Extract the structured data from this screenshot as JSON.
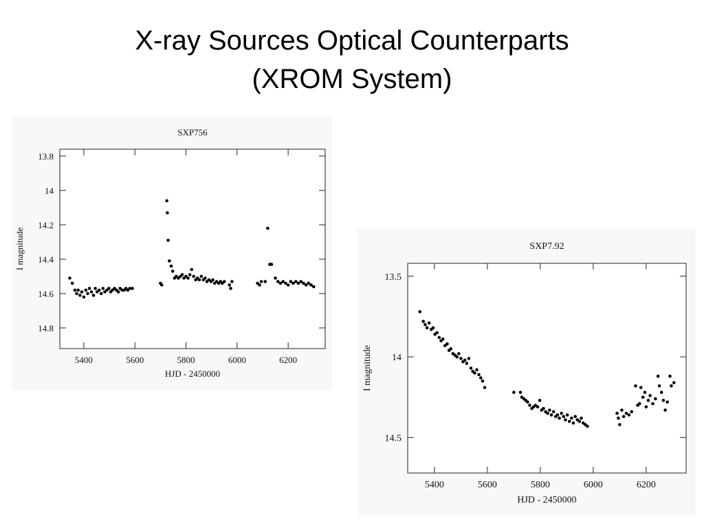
{
  "title": [
    "X-ray Sources Optical Counterparts",
    "(XROM System)"
  ],
  "chart_data": [
    {
      "type": "scatter",
      "title": "SXP756",
      "x_label": "HJD - 2450000",
      "y_label": "I magnitude",
      "color": "#000000",
      "y_inverted": true,
      "xlim": [
        5306,
        6345
      ],
      "ylim": [
        13.76,
        14.92
      ],
      "xticks": [
        5400,
        5600,
        5800,
        6000,
        6200
      ],
      "yticks": [
        13.8,
        14,
        14.2,
        14.4,
        14.6,
        14.8
      ],
      "x": [
        5345,
        5355,
        5365,
        5372,
        5378,
        5385,
        5392,
        5400,
        5408,
        5415,
        5422,
        5430,
        5438,
        5445,
        5452,
        5460,
        5468,
        5475,
        5482,
        5490,
        5498,
        5505,
        5512,
        5520,
        5528,
        5535,
        5542,
        5550,
        5558,
        5565,
        5572,
        5580,
        5590,
        5700,
        5705,
        5725,
        5727,
        5730,
        5735,
        5742,
        5748,
        5755,
        5762,
        5770,
        5778,
        5785,
        5792,
        5800,
        5808,
        5815,
        5822,
        5830,
        5838,
        5845,
        5852,
        5860,
        5868,
        5875,
        5882,
        5890,
        5898,
        5905,
        5912,
        5920,
        5928,
        5935,
        5942,
        5950,
        5970,
        5975,
        5980,
        6080,
        6088,
        6095,
        6110,
        6120,
        6128,
        6135,
        6150,
        6160,
        6170,
        6180,
        6190,
        6200,
        6210,
        6220,
        6230,
        6240,
        6250,
        6260,
        6270,
        6280,
        6290,
        6300
      ],
      "values": [
        14.51,
        14.54,
        14.58,
        14.6,
        14.58,
        14.61,
        14.59,
        14.62,
        14.58,
        14.6,
        14.57,
        14.59,
        14.61,
        14.57,
        14.59,
        14.58,
        14.6,
        14.57,
        14.59,
        14.58,
        14.57,
        14.59,
        14.58,
        14.57,
        14.58,
        14.59,
        14.57,
        14.58,
        14.58,
        14.57,
        14.58,
        14.57,
        14.57,
        14.54,
        14.55,
        14.06,
        14.13,
        14.29,
        14.41,
        14.44,
        14.47,
        14.51,
        14.5,
        14.51,
        14.5,
        14.49,
        14.51,
        14.5,
        14.51,
        14.49,
        14.46,
        14.5,
        14.52,
        14.51,
        14.52,
        14.5,
        14.52,
        14.51,
        14.53,
        14.52,
        14.53,
        14.52,
        14.54,
        14.53,
        14.54,
        14.53,
        14.54,
        14.53,
        14.55,
        14.57,
        14.53,
        14.54,
        14.55,
        14.53,
        14.53,
        14.22,
        14.43,
        14.43,
        14.51,
        14.53,
        14.54,
        14.53,
        14.54,
        14.55,
        14.53,
        14.54,
        14.53,
        14.54,
        14.53,
        14.54,
        14.55,
        14.54,
        14.55,
        14.56
      ]
    },
    {
      "type": "scatter",
      "title": "SXP7.92",
      "x_label": "HJD - 2450000",
      "y_label": "I magnitude",
      "color": "#000000",
      "y_inverted": true,
      "xlim": [
        5299,
        6351
      ],
      "ylim": [
        13.42,
        14.72
      ],
      "xticks": [
        5400,
        5600,
        5800,
        6000,
        6200
      ],
      "yticks": [
        13.5,
        14,
        14.5
      ],
      "x": [
        5345,
        5358,
        5365,
        5372,
        5380,
        5388,
        5395,
        5402,
        5410,
        5418,
        5425,
        5432,
        5440,
        5448,
        5455,
        5462,
        5470,
        5478,
        5485,
        5492,
        5500,
        5508,
        5515,
        5522,
        5530,
        5538,
        5545,
        5552,
        5560,
        5568,
        5575,
        5582,
        5590,
        5700,
        5725,
        5730,
        5738,
        5745,
        5752,
        5760,
        5768,
        5775,
        5782,
        5790,
        5798,
        5805,
        5812,
        5820,
        5828,
        5835,
        5842,
        5850,
        5858,
        5865,
        5872,
        5880,
        5888,
        5895,
        5902,
        5910,
        5918,
        5925,
        5932,
        5940,
        5948,
        5955,
        5962,
        5970,
        5978,
        6090,
        6095,
        6100,
        6108,
        6115,
        6125,
        6135,
        6145,
        6160,
        6168,
        6175,
        6180,
        6188,
        6195,
        6200,
        6208,
        6215,
        6225,
        6235,
        6245,
        6250,
        6258,
        6265,
        6272,
        6280,
        6290,
        6295,
        6305
      ],
      "values": [
        13.72,
        13.78,
        13.8,
        13.82,
        13.79,
        13.83,
        13.82,
        13.86,
        13.85,
        13.88,
        13.9,
        13.89,
        13.93,
        13.92,
        13.96,
        13.95,
        13.98,
        13.99,
        14.0,
        13.98,
        14.01,
        14.03,
        14.02,
        14.04,
        14.01,
        14.07,
        14.09,
        14.1,
        14.08,
        14.11,
        14.13,
        14.15,
        14.19,
        14.22,
        14.22,
        14.25,
        14.26,
        14.27,
        14.28,
        14.3,
        14.32,
        14.31,
        14.3,
        14.31,
        14.27,
        14.33,
        14.32,
        14.34,
        14.35,
        14.33,
        14.36,
        14.34,
        14.37,
        14.36,
        14.38,
        14.35,
        14.37,
        14.39,
        14.36,
        14.4,
        14.38,
        14.41,
        14.37,
        14.39,
        14.4,
        14.38,
        14.41,
        14.42,
        14.43,
        14.35,
        14.38,
        14.42,
        14.33,
        14.37,
        14.35,
        14.36,
        14.34,
        14.18,
        14.3,
        14.29,
        14.19,
        14.25,
        14.22,
        14.31,
        14.27,
        14.24,
        14.29,
        14.26,
        14.12,
        14.18,
        14.22,
        14.27,
        14.33,
        14.28,
        14.12,
        14.18,
        14.16
      ]
    }
  ]
}
